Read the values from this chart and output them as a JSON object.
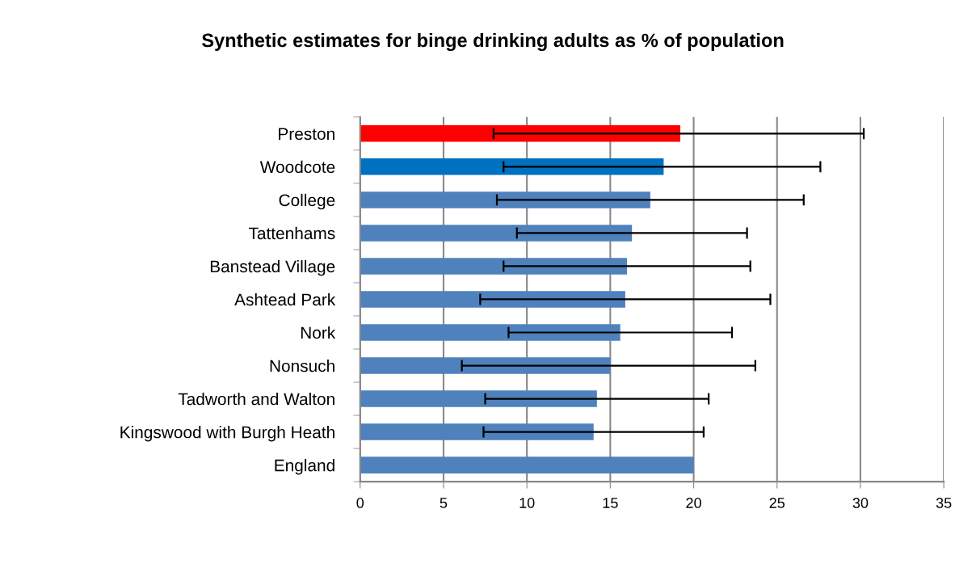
{
  "chart_data": {
    "type": "bar",
    "orientation": "horizontal",
    "title": "Synthetic estimates for binge drinking adults as % of population",
    "categories": [
      "Preston",
      "Woodcote",
      "College",
      "Tattenhams",
      "Banstead Village",
      "Ashtead Park",
      "Nork",
      "Nonsuch",
      "Tadworth and Walton",
      "Kingswood with Burgh Heath",
      "England"
    ],
    "values": [
      19.2,
      18.2,
      17.4,
      16.3,
      16.0,
      15.9,
      15.6,
      15.0,
      14.2,
      14.0,
      20.0
    ],
    "colors": [
      "#ff0000",
      "#0070c0",
      "#4f81bd",
      "#4f81bd",
      "#4f81bd",
      "#4f81bd",
      "#4f81bd",
      "#4f81bd",
      "#4f81bd",
      "#4f81bd",
      "#4f81bd"
    ],
    "errors": [
      [
        8.0,
        30.2
      ],
      [
        8.6,
        27.6
      ],
      [
        8.2,
        26.6
      ],
      [
        9.4,
        23.2
      ],
      [
        8.6,
        23.4
      ],
      [
        7.2,
        24.6
      ],
      [
        8.9,
        22.3
      ],
      [
        6.1,
        23.7
      ],
      [
        7.5,
        20.9
      ],
      [
        7.4,
        20.6
      ],
      null
    ],
    "xlim": [
      0,
      35
    ],
    "xticks": [
      0,
      5,
      10,
      15,
      20,
      25,
      30,
      35
    ],
    "grid": "x",
    "legend": false
  }
}
